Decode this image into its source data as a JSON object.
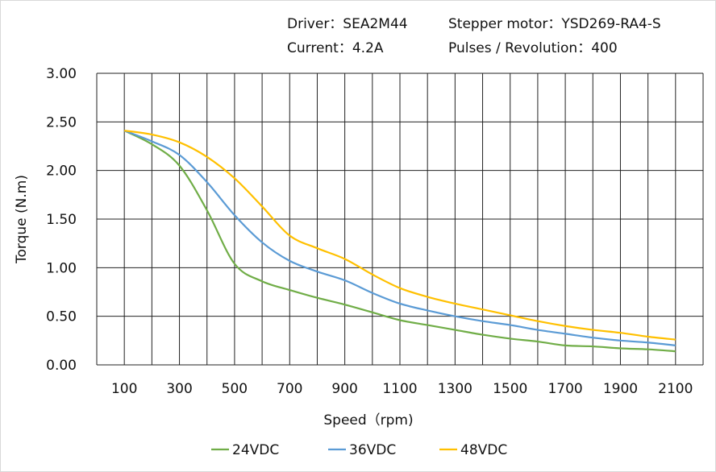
{
  "header": {
    "driver": "Driver：SEA2M44",
    "motor": "Stepper motor：YSD269-RA4-S",
    "current": "Current：4.2A",
    "pulses": "Pulses / Revolution：400"
  },
  "chart_data": {
    "type": "line",
    "title": "",
    "xlabel": "Speed（rpm)",
    "ylabel": "Torque (N.m)",
    "xlim": [
      0,
      2200
    ],
    "ylim": [
      0,
      3
    ],
    "grid": true,
    "legend_position": "bottom",
    "x_ticks": [
      "100",
      "300",
      "500",
      "700",
      "900",
      "1100",
      "1300",
      "1500",
      "1700",
      "1900",
      "2100"
    ],
    "y_ticks": [
      "0.00",
      "0.50",
      "1.00",
      "1.50",
      "2.00",
      "2.50",
      "3.00"
    ],
    "x": [
      100,
      200,
      300,
      400,
      500,
      600,
      700,
      800,
      900,
      1000,
      1100,
      1200,
      1300,
      1400,
      1500,
      1600,
      1700,
      1800,
      1900,
      2000,
      2100
    ],
    "series": [
      {
        "name": "24VDC",
        "color": "#70ad47",
        "values": [
          2.41,
          2.27,
          2.05,
          1.59,
          1.04,
          0.86,
          0.77,
          0.69,
          0.62,
          0.54,
          0.46,
          0.41,
          0.36,
          0.31,
          0.27,
          0.24,
          0.2,
          0.19,
          0.17,
          0.16,
          0.14
        ]
      },
      {
        "name": "36VDC",
        "color": "#5b9bd5",
        "values": [
          2.41,
          2.3,
          2.16,
          1.88,
          1.54,
          1.26,
          1.07,
          0.96,
          0.87,
          0.74,
          0.63,
          0.56,
          0.5,
          0.45,
          0.41,
          0.36,
          0.32,
          0.28,
          0.25,
          0.23,
          0.2
        ]
      },
      {
        "name": "48VDC",
        "color": "#ffc000",
        "values": [
          2.41,
          2.37,
          2.29,
          2.14,
          1.92,
          1.63,
          1.33,
          1.2,
          1.09,
          0.93,
          0.79,
          0.7,
          0.63,
          0.57,
          0.51,
          0.45,
          0.4,
          0.36,
          0.33,
          0.29,
          0.26
        ]
      }
    ]
  }
}
